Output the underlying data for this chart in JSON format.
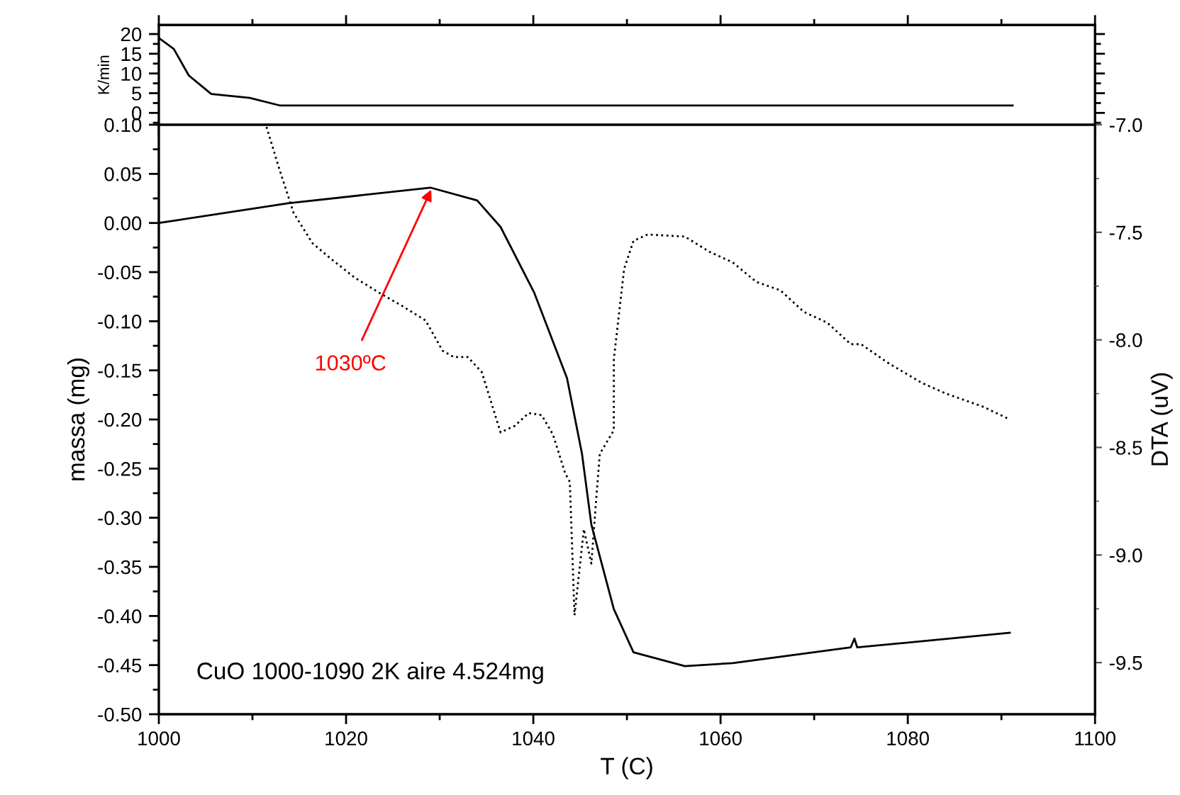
{
  "chart_data": [
    {
      "type": "line",
      "ylabel": "K/min",
      "xlim": [
        1000,
        1100
      ],
      "xticks": [
        {
          "value": 1000,
          "label": null
        },
        {
          "value": 1020,
          "label": null
        },
        {
          "value": 1040,
          "label": null
        },
        {
          "value": 1060,
          "label": null
        },
        {
          "value": 1080,
          "label": null
        },
        {
          "value": 1100,
          "label": null
        }
      ],
      "ylim": [
        -3,
        22.3
      ],
      "yticks": [
        0,
        5,
        10,
        15,
        20
      ],
      "tick_labels": "y",
      "series": [
        {
          "color": "#000000",
          "line_style": "solid",
          "x": [
            1000,
            1001.6,
            1003.2,
            1005.6,
            1009.7,
            1012.9,
            1020,
            1030,
            1040,
            1050,
            1060,
            1070,
            1080,
            1091.2
          ],
          "values": [
            19.0,
            16.2,
            9.5,
            4.8,
            3.8,
            1.9,
            1.9,
            1.9,
            1.9,
            1.9,
            1.9,
            1.9,
            1.9,
            1.9
          ]
        }
      ]
    },
    {
      "type": "line",
      "xlabel": "T (C)",
      "ylabel": "massa (mg)",
      "y2label": "DTA (uV)",
      "xlim": [
        1000,
        1100
      ],
      "xticks": [
        1000,
        1020,
        1040,
        1060,
        1080,
        1100
      ],
      "ylim": [
        -0.5,
        0.1
      ],
      "yticks": [
        {
          "value": -0.5,
          "label": "-0.50"
        },
        {
          "value": -0.45,
          "label": "-0.45"
        },
        {
          "value": -0.4,
          "label": "-0.40"
        },
        {
          "value": -0.35,
          "label": "-0.35"
        },
        {
          "value": -0.3,
          "label": "-0.30"
        },
        {
          "value": -0.25,
          "label": "-0.25"
        },
        {
          "value": -0.2,
          "label": "-0.20"
        },
        {
          "value": -0.15,
          "label": "-0.15"
        },
        {
          "value": -0.1,
          "label": "-0.10"
        },
        {
          "value": -0.05,
          "label": "-0.05"
        },
        {
          "value": 0,
          "label": "0.00"
        },
        {
          "value": 0.05,
          "label": "0.05"
        },
        {
          "value": 0.1,
          "label": "0.10"
        }
      ],
      "y2lim": [
        -9.74,
        -7.0
      ],
      "y2ticks": [
        {
          "value": -9.5,
          "label": "-9.5"
        },
        {
          "value": -9.0,
          "label": "-9.0"
        },
        {
          "value": -8.5,
          "label": "-8.5"
        },
        {
          "value": -8.0,
          "label": "-8.0"
        },
        {
          "value": -7.5,
          "label": "-7.5"
        },
        {
          "value": -7.0,
          "label": "-7.0"
        }
      ],
      "annotations": [
        {
          "text": "1030ºC",
          "x": 1029.1,
          "y": 0.034
        },
        "CuO 1000-1090 2K aire 4.524mg"
      ],
      "series": [
        {
          "color": "#000000",
          "line_style": "solid",
          "x": [
            1000,
            1013.8,
            1029,
            1034,
            1036.5,
            1040.1,
            1043.6,
            1045.2,
            1046.2,
            1048.6,
            1050.7,
            1056.2,
            1061.3,
            1073.9,
            1074.3,
            1074.6,
            1090.9
          ],
          "values": [
            0.0,
            0.02,
            0.036,
            0.023,
            -0.004,
            -0.071,
            -0.158,
            -0.235,
            -0.307,
            -0.393,
            -0.437,
            -0.451,
            -0.448,
            -0.432,
            -0.423,
            -0.432,
            -0.417
          ]
        },
        {
          "color": "#000000",
          "line_style": "dotted",
          "axis": "y2",
          "x": [
            1011.5,
            1012.9,
            1014.4,
            1016.4,
            1018.3,
            1020.9,
            1023.5,
            1025.9,
            1028.5,
            1030.3,
            1031.5,
            1033.0,
            1034.5,
            1036.5,
            1038.0,
            1039.5,
            1040.9,
            1042.1,
            1043.4,
            1043.9,
            1044.4,
            1045.4,
            1046.2,
            1046.7,
            1047.1,
            1048.6,
            1048.6,
            1049.7,
            1050.7,
            1052.2,
            1056.2,
            1058.8,
            1061.3,
            1063.8,
            1066.4,
            1068.9,
            1071.4,
            1073.9,
            1075.0,
            1078.0,
            1081.5,
            1084.1,
            1088.0,
            1090.9
          ],
          "values": [
            -7.01,
            -7.21,
            -7.41,
            -7.55,
            -7.62,
            -7.71,
            -7.78,
            -7.84,
            -7.91,
            -8.05,
            -8.08,
            -8.08,
            -8.15,
            -8.43,
            -8.4,
            -8.34,
            -8.35,
            -8.44,
            -8.62,
            -8.66,
            -9.28,
            -8.88,
            -9.04,
            -8.75,
            -8.53,
            -8.42,
            -8.09,
            -7.67,
            -7.54,
            -7.51,
            -7.52,
            -7.59,
            -7.64,
            -7.73,
            -7.77,
            -7.87,
            -7.92,
            -8.02,
            -8.02,
            -8.11,
            -8.2,
            -8.25,
            -8.31,
            -8.37
          ]
        }
      ]
    }
  ]
}
